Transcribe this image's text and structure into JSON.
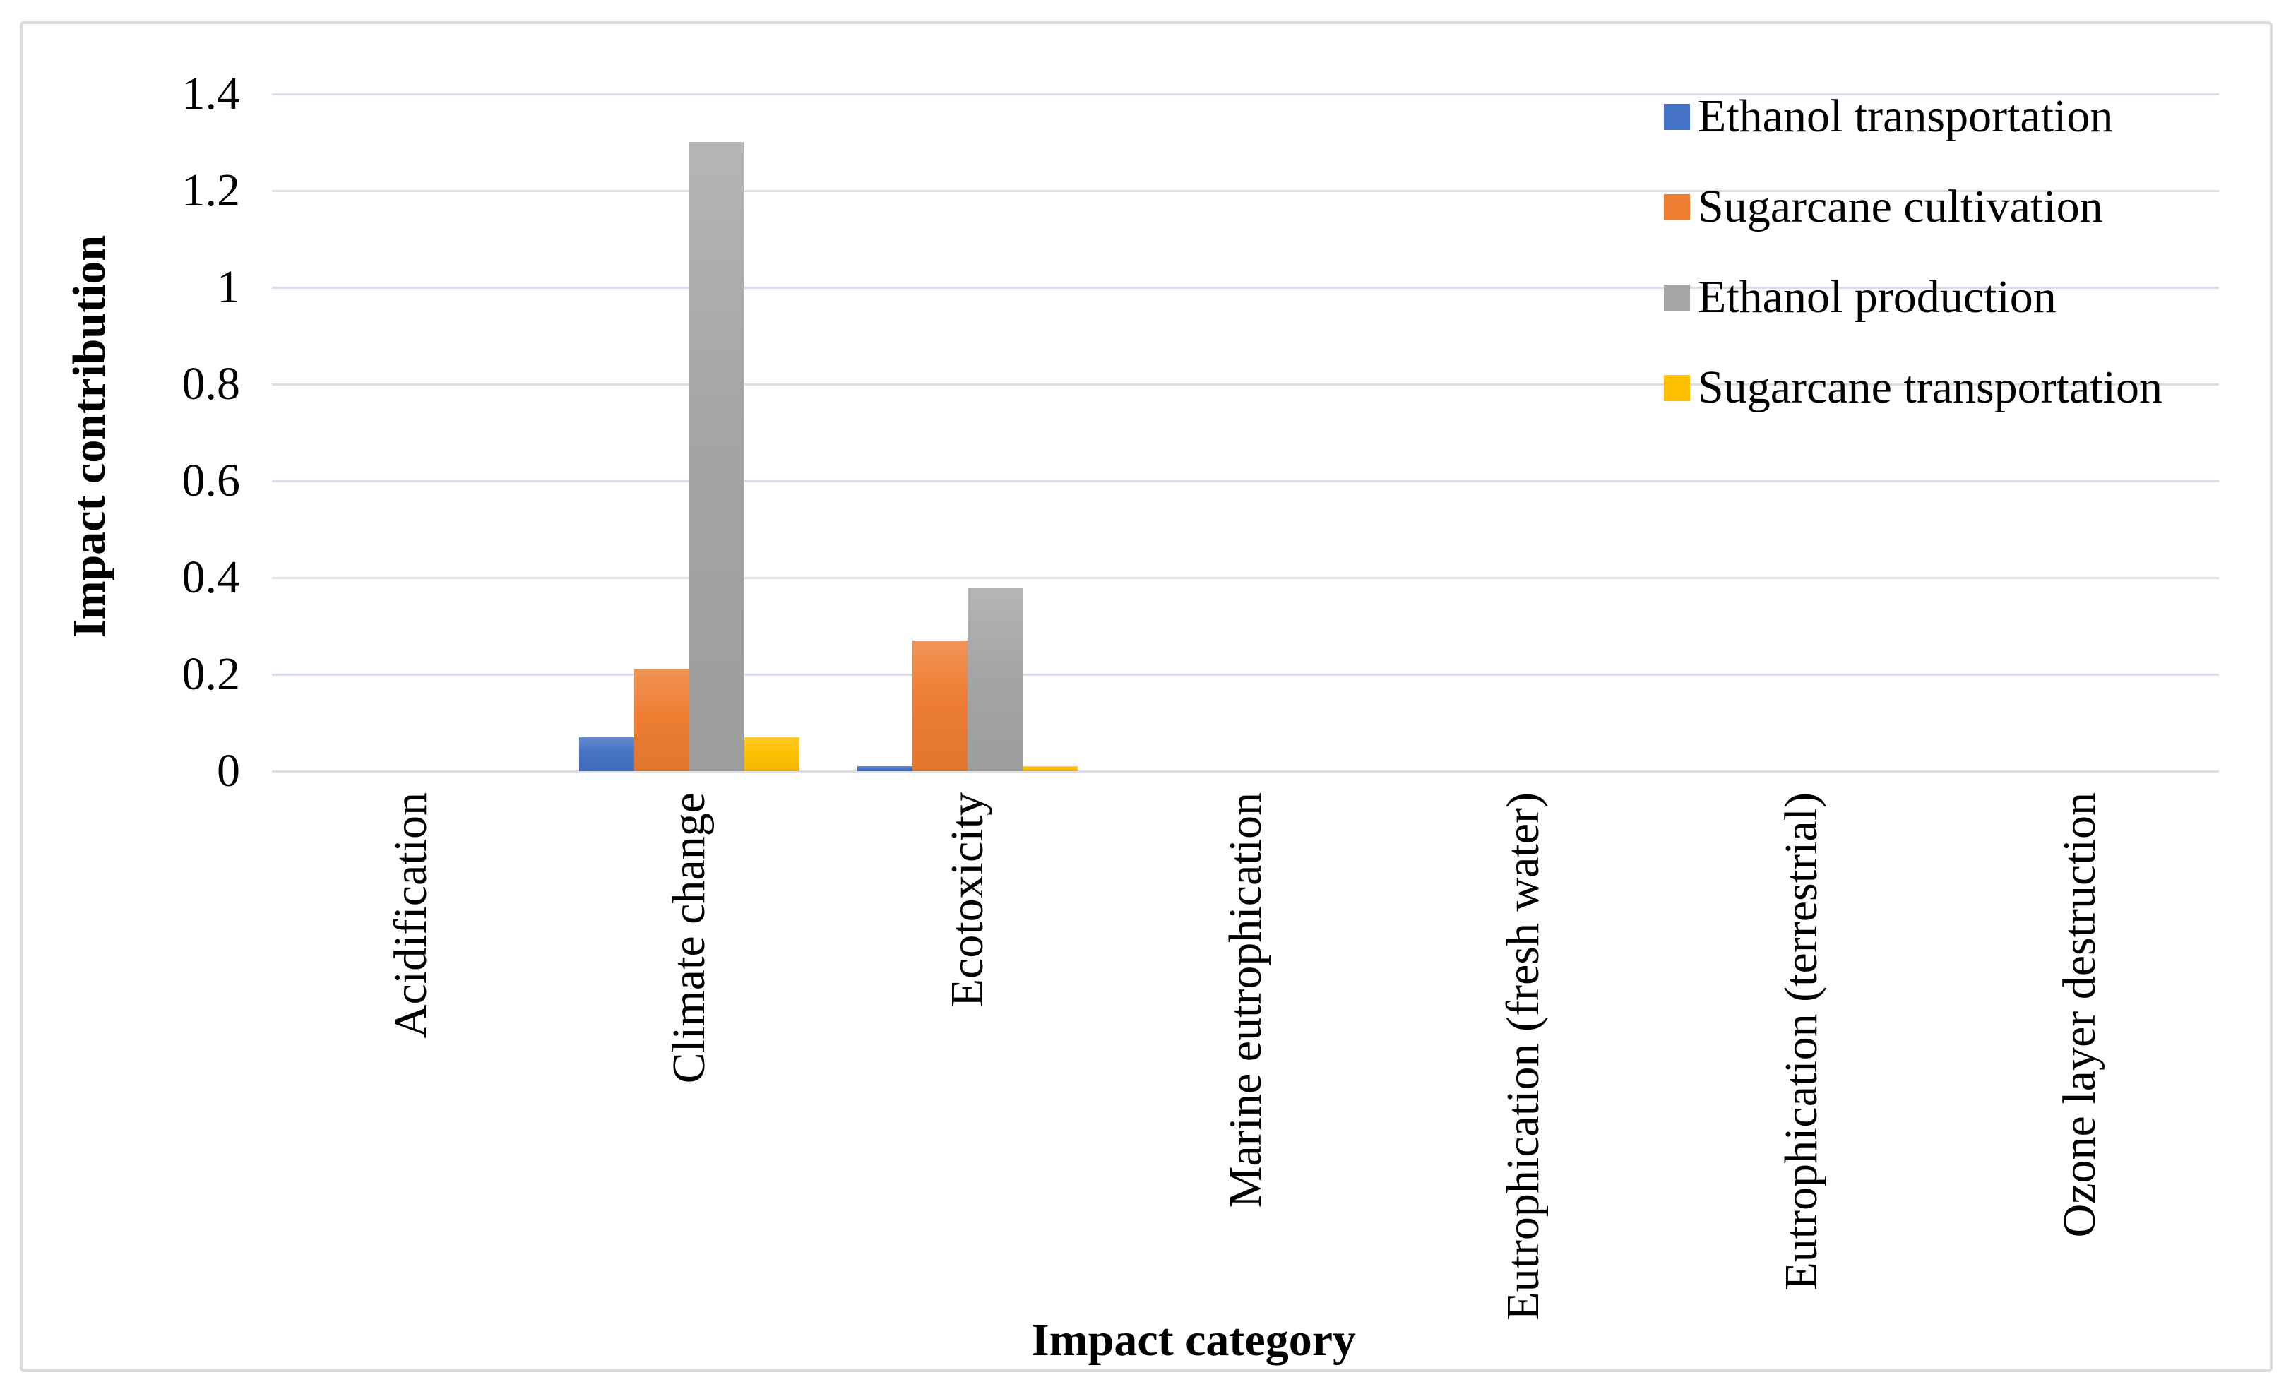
{
  "figure": {
    "background": "#ffffff",
    "border_color": "#d7dce3",
    "text_color": "#000000"
  },
  "chart_data": {
    "type": "bar",
    "title": "",
    "xlabel": "Impact category",
    "ylabel": "Impact contribution",
    "categories": [
      "Acidification",
      "Climate change",
      "Ecotoxicity",
      "Marine eutrophication",
      "Eutrophication (fresh water)",
      "Eutrophication (terrestrial)",
      "Ozone layer destruction"
    ],
    "series": [
      {
        "name": "Ethanol transportation",
        "color": "#4472C4",
        "values": [
          0,
          0.07,
          0.01,
          0,
          0,
          0,
          0
        ]
      },
      {
        "name": "Sugarcane cultivation",
        "color": "#ED7D31",
        "values": [
          0,
          0.21,
          0.27,
          0,
          0,
          0,
          0
        ]
      },
      {
        "name": "Ethanol production",
        "color": "#A5A5A5",
        "values": [
          0,
          1.3,
          0.38,
          0,
          0,
          0,
          0
        ]
      },
      {
        "name": "Sugarcane transportation",
        "color": "#FFC000",
        "values": [
          0,
          0.07,
          0.01,
          0,
          0,
          0,
          0
        ]
      }
    ],
    "ylim": [
      0,
      1.4
    ],
    "ytick_step": 0.2,
    "yticks": [
      "1.4",
      "1.2",
      "1",
      "0.8",
      "0.6",
      "0.4",
      "0.2",
      "0"
    ],
    "grid": true,
    "gridline_color": "#d9dee8",
    "axis_line_color": "#d9dee8",
    "legend_position": "inside-top-right"
  }
}
